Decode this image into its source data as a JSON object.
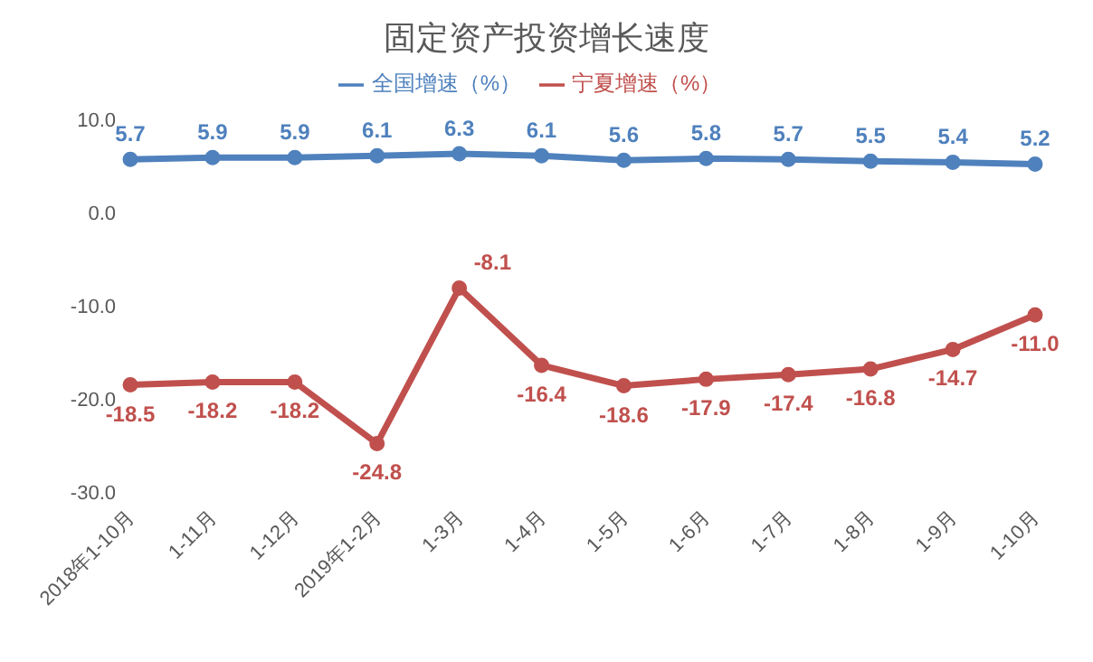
{
  "chart_data": {
    "type": "line",
    "title": "固定资产投资增长速度",
    "categories": [
      "2018年1-10月",
      "1-11月",
      "1-12月",
      "2019年1-2月",
      "1-3月",
      "1-4月",
      "1-5月",
      "1-6月",
      "1-7月",
      "1-8月",
      "1-9月",
      "1-10月"
    ],
    "series": [
      {
        "name": "全国增速（%）",
        "color": "#4f81bd",
        "values": [
          5.7,
          5.9,
          5.9,
          6.1,
          6.3,
          6.1,
          5.6,
          5.8,
          5.7,
          5.5,
          5.4,
          5.2
        ]
      },
      {
        "name": "宁夏增速（%）",
        "color": "#c0504d",
        "values": [
          -18.5,
          -18.2,
          -18.2,
          -24.8,
          -8.1,
          -16.4,
          -18.6,
          -17.9,
          -17.4,
          -16.8,
          -14.7,
          -11.0
        ],
        "value_labels": [
          "-18.5",
          "-18.2",
          "-18.2",
          "-24.8",
          "-8.1",
          "-16.4",
          "-18.6",
          "-17.9",
          "-17.4",
          "-16.8",
          "-14.7",
          "-11.0"
        ]
      }
    ],
    "ylim": [
      -30,
      10
    ],
    "yticks": [
      {
        "value": 10,
        "label": "10.0"
      },
      {
        "value": 0,
        "label": "0.0"
      },
      {
        "value": -10,
        "label": "-10.0"
      },
      {
        "value": -20,
        "label": "-20.0"
      },
      {
        "value": -30,
        "label": "-30.0"
      }
    ],
    "data_labels": true,
    "legend": "top",
    "marker": "circle",
    "grid": false
  }
}
